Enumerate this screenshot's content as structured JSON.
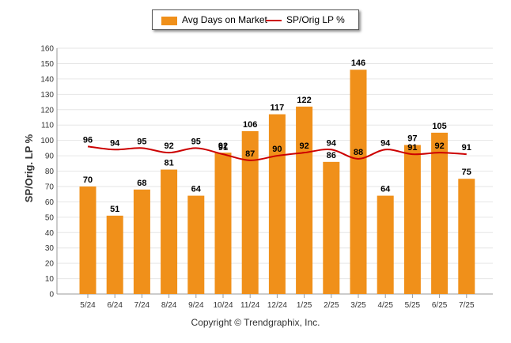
{
  "chart_data": {
    "type": "bar",
    "categories": [
      "5/24",
      "6/24",
      "7/24",
      "8/24",
      "9/24",
      "10/24",
      "11/24",
      "12/24",
      "1/25",
      "2/25",
      "3/25",
      "4/25",
      "5/25",
      "6/25",
      "7/25"
    ],
    "series": [
      {
        "name": "Avg Days on Market",
        "type": "bar",
        "color": "#f0901a",
        "values": [
          70,
          51,
          68,
          81,
          64,
          92,
          106,
          117,
          122,
          86,
          146,
          64,
          97,
          105,
          75
        ]
      },
      {
        "name": "SP/Orig LP %",
        "type": "line",
        "color": "#cc0000",
        "values": [
          96,
          94,
          95,
          92,
          95,
          91,
          87,
          90,
          92,
          94,
          88,
          94,
          91,
          92,
          91
        ]
      }
    ],
    "ylabel": "SP/Orig. LP %",
    "ylim": [
      0,
      160
    ],
    "yticks": [
      0,
      10,
      20,
      30,
      40,
      50,
      60,
      70,
      80,
      90,
      100,
      110,
      120,
      130,
      140,
      150,
      160
    ],
    "grid": true,
    "legend_position": "top-center"
  },
  "legend": {
    "bar_label": "Avg Days on Market",
    "line_label": "SP/Orig LP %"
  },
  "footer": {
    "copyright": "Copyright © Trendgraphix, Inc."
  }
}
